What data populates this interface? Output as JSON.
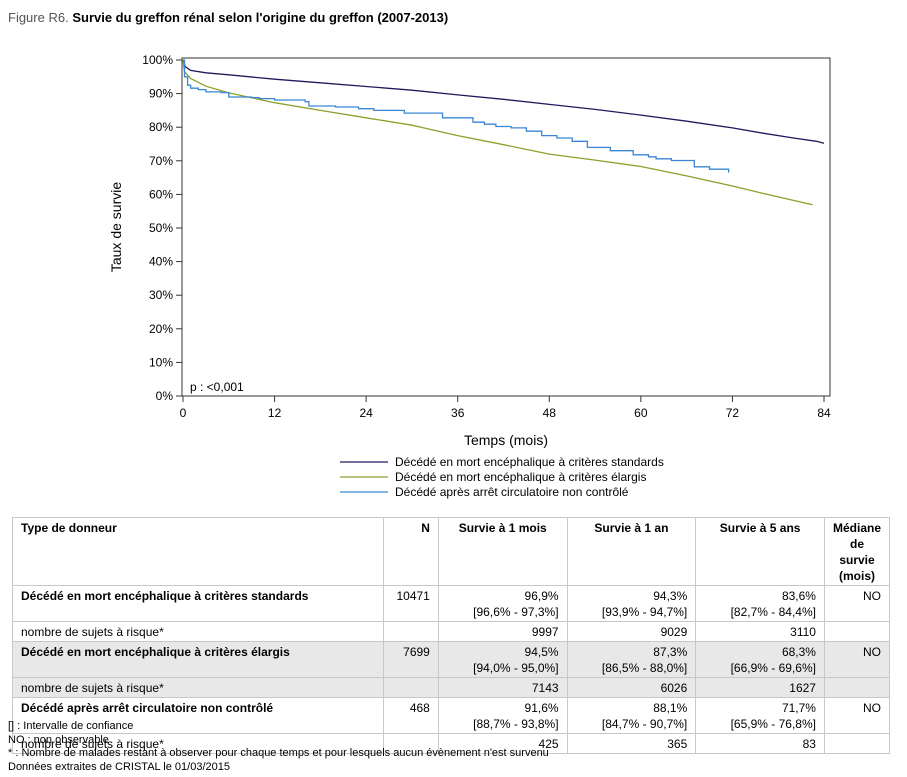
{
  "figure": {
    "label": "Figure R6.",
    "title": "Survie du greffon rénal selon l'origine du greffon (2007-2013)"
  },
  "chart_data": {
    "type": "line",
    "title": "Survie du greffon rénal selon l'origine du greffon (2007-2013)",
    "xlabel": "Temps (mois)",
    "ylabel": "Taux de survie",
    "xlim": [
      0,
      84
    ],
    "ylim": [
      0,
      100
    ],
    "x_ticks": [
      0,
      12,
      24,
      36,
      48,
      60,
      72,
      84
    ],
    "y_ticks": [
      0,
      10,
      20,
      30,
      40,
      50,
      60,
      70,
      80,
      90,
      100
    ],
    "y_tick_labels": [
      "0%",
      "10%",
      "20%",
      "30%",
      "40%",
      "50%",
      "60%",
      "70%",
      "80%",
      "90%",
      "100%"
    ],
    "annotation": "p : <0,001",
    "legend_position": "bottom",
    "grid": false,
    "series": [
      {
        "name": "Décédé en mort encéphalique à critères standards",
        "color": "#1f1a5c",
        "step": false,
        "points": [
          [
            0,
            100
          ],
          [
            0.3,
            98
          ],
          [
            1,
            96.9
          ],
          [
            3,
            96.2
          ],
          [
            6,
            95.6
          ],
          [
            12,
            94.3
          ],
          [
            18,
            93.2
          ],
          [
            24,
            92.1
          ],
          [
            30,
            91
          ],
          [
            36,
            89.6
          ],
          [
            42,
            88.3
          ],
          [
            48,
            86.8
          ],
          [
            54,
            85.3
          ],
          [
            60,
            83.6
          ],
          [
            66,
            81.8
          ],
          [
            72,
            79.8
          ],
          [
            76,
            78.2
          ],
          [
            80,
            76.8
          ],
          [
            83,
            75.8
          ],
          [
            84,
            75.2
          ]
        ]
      },
      {
        "name": "Décédé en mort encéphalique à critères élargis",
        "color": "#8aa12a",
        "step": false,
        "points": [
          [
            0,
            100
          ],
          [
            0.2,
            96.5
          ],
          [
            1,
            94.5
          ],
          [
            3,
            92.2
          ],
          [
            6,
            90.2
          ],
          [
            12,
            87.3
          ],
          [
            18,
            85
          ],
          [
            24,
            82.8
          ],
          [
            30,
            80.6
          ],
          [
            36,
            77.5
          ],
          [
            42,
            74.8
          ],
          [
            48,
            72
          ],
          [
            54,
            70.2
          ],
          [
            60,
            68.3
          ],
          [
            66,
            65.5
          ],
          [
            72,
            62.5
          ],
          [
            76,
            60.3
          ],
          [
            80,
            58.2
          ],
          [
            82.5,
            56.9
          ]
        ]
      },
      {
        "name": "Décédé après arrêt circulatoire non contrôlé",
        "color": "#3b86d4",
        "step": true,
        "points": [
          [
            0,
            100
          ],
          [
            0.2,
            95
          ],
          [
            0.6,
            92.5
          ],
          [
            1,
            91.6
          ],
          [
            2,
            91.2
          ],
          [
            3,
            90.5
          ],
          [
            5,
            90.3
          ],
          [
            6,
            89
          ],
          [
            9,
            88.8
          ],
          [
            10,
            88.5
          ],
          [
            12,
            88.1
          ],
          [
            16,
            87.6
          ],
          [
            16.5,
            86.3
          ],
          [
            20,
            86
          ],
          [
            23,
            85.5
          ],
          [
            25,
            85
          ],
          [
            29,
            84.2
          ],
          [
            34,
            82.8
          ],
          [
            38,
            81.5
          ],
          [
            39.5,
            80.9
          ],
          [
            41,
            80.2
          ],
          [
            43,
            79.8
          ],
          [
            45,
            78.8
          ],
          [
            47,
            77.5
          ],
          [
            49,
            76.8
          ],
          [
            51,
            75.8
          ],
          [
            53,
            74
          ],
          [
            56,
            73
          ],
          [
            59,
            71.8
          ],
          [
            61,
            71.2
          ],
          [
            62,
            70.6
          ],
          [
            64,
            70.1
          ],
          [
            67,
            68.2
          ],
          [
            69,
            67.5
          ],
          [
            71,
            67.5
          ],
          [
            71.5,
            66.5
          ]
        ]
      }
    ]
  },
  "table": {
    "headers": [
      "Type de donneur",
      "N",
      "Survie à 1 mois",
      "Survie à 1 an",
      "Survie à 5 ans",
      "Médiane de survie (mois)"
    ],
    "groups": [
      {
        "name": "Décédé en mort encéphalique à critères standards",
        "n": "10471",
        "s1m": "96,9%",
        "s1m_ci": "[96,6% - 97,3%]",
        "s1y": "94,3%",
        "s1y_ci": "[93,9% - 94,7%]",
        "s5y": "83,6%",
        "s5y_ci": "[82,7% - 84,4%]",
        "median": "NO",
        "risk_label": "nombre de sujets à risque*",
        "risk": [
          "9997",
          "9029",
          "3110"
        ]
      },
      {
        "name": "Décédé en mort encéphalique à critères élargis",
        "n": "7699",
        "s1m": "94,5%",
        "s1m_ci": "[94,0% - 95,0%]",
        "s1y": "87,3%",
        "s1y_ci": "[86,5% - 88,0%]",
        "s5y": "68,3%",
        "s5y_ci": "[66,9% - 69,6%]",
        "median": "NO",
        "risk_label": "nombre de sujets à risque*",
        "risk": [
          "7143",
          "6026",
          "1627"
        ]
      },
      {
        "name": "Décédé après arrêt circulatoire non contrôlé",
        "n": "468",
        "s1m": "91,6%",
        "s1m_ci": "[88,7% - 93,8%]",
        "s1y": "88,1%",
        "s1y_ci": "[84,7% - 90,7%]",
        "s5y": "71,7%",
        "s5y_ci": "[65,9% - 76,8%]",
        "median": "NO",
        "risk_label": "nombre de sujets à risque*",
        "risk": [
          "425",
          "365",
          "83"
        ]
      }
    ]
  },
  "footnotes": [
    "[] : Intervalle de confiance",
    "NO : non observable",
    "* : Nombre de malades restant à observer pour chaque temps et pour lesquels aucun évènement n'est survenu",
    "Données extraites de CRISTAL le 01/03/2015"
  ]
}
